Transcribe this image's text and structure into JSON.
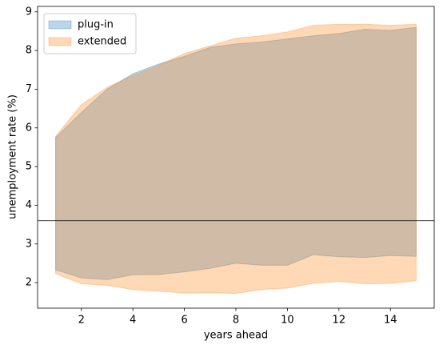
{
  "chart_data": {
    "type": "band",
    "xlabel": "years ahead",
    "ylabel": "unemployment rate (%)",
    "x": [
      1,
      2,
      3,
      4,
      5,
      6,
      7,
      8,
      9,
      10,
      11,
      12,
      13,
      14,
      15
    ],
    "series": [
      {
        "name": "plug-in",
        "color": "#1f77b4",
        "alpha": 0.3,
        "upper": [
          5.75,
          6.4,
          7.0,
          7.4,
          7.65,
          7.85,
          8.08,
          8.17,
          8.22,
          8.3,
          8.38,
          8.44,
          8.55,
          8.52,
          8.6
        ],
        "lower": [
          2.33,
          2.12,
          2.08,
          2.2,
          2.21,
          2.28,
          2.37,
          2.5,
          2.45,
          2.45,
          2.72,
          2.67,
          2.65,
          2.7,
          2.68
        ]
      },
      {
        "name": "extended",
        "color": "#ff7f0e",
        "alpha": 0.3,
        "upper": [
          5.78,
          6.6,
          7.05,
          7.35,
          7.62,
          7.92,
          8.12,
          8.32,
          8.38,
          8.48,
          8.65,
          8.68,
          8.68,
          8.65,
          8.68
        ],
        "lower": [
          2.23,
          1.97,
          1.93,
          1.82,
          1.78,
          1.73,
          1.74,
          1.72,
          1.82,
          1.86,
          1.98,
          2.03,
          1.97,
          1.98,
          2.05
        ]
      }
    ],
    "hline": 3.6,
    "hline_color": "#000000",
    "xlim": [
      0.3,
      15.7
    ],
    "ylim": [
      1.34,
      9.14
    ],
    "xticks": [
      2,
      4,
      6,
      8,
      10,
      12,
      14
    ],
    "yticks": [
      2,
      3,
      4,
      5,
      6,
      7,
      8,
      9
    ],
    "legend": "upper left"
  }
}
